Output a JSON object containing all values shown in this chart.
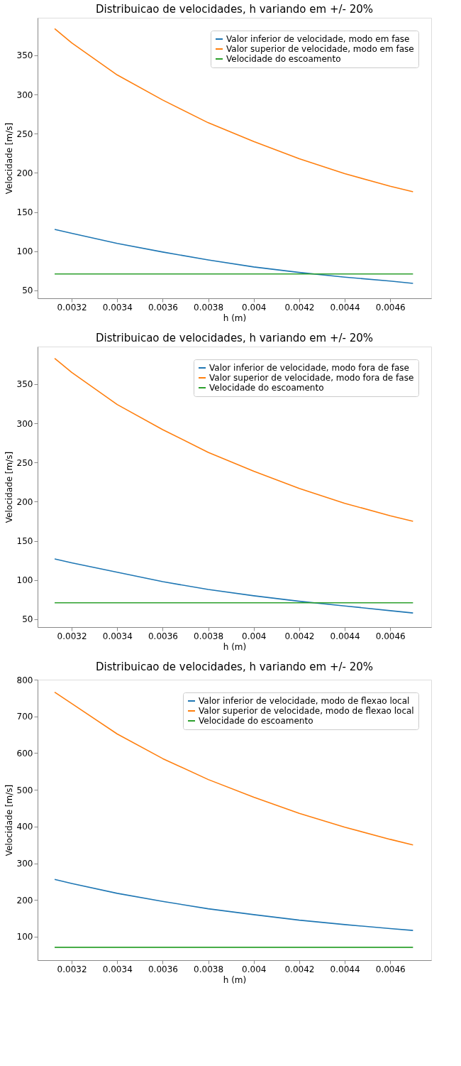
{
  "chart_data": [
    {
      "type": "line",
      "title": "Distribuicao de velocidades, h variando em +/- 20%",
      "xlabel": "h (m)",
      "ylabel": "Velocidade [m/s]",
      "x": [
        0.003125,
        0.0032,
        0.0034,
        0.0036,
        0.0038,
        0.004,
        0.0042,
        0.0044,
        0.0046,
        0.0047
      ],
      "xlim": [
        0.00305,
        0.00478
      ],
      "xticks": [
        0.0032,
        0.0034,
        0.0036,
        0.0038,
        0.004,
        0.0042,
        0.0044,
        0.0046
      ],
      "ylim": [
        40,
        398
      ],
      "yticks": [
        50,
        100,
        150,
        200,
        250,
        300,
        350
      ],
      "grid": false,
      "legend": "top right",
      "marker": "none",
      "line_style": "solid",
      "series": [
        {
          "name": "Valor inferior de velocidade, modo em fase",
          "color": "#1f77b4",
          "values": [
            128,
            123,
            110,
            99,
            89,
            80,
            73,
            67,
            62,
            59
          ]
        },
        {
          "name": "Valor superior de velocidade, modo em fase",
          "color": "#ff7f0e",
          "values": [
            384,
            366,
            325,
            293,
            264,
            240,
            218,
            199,
            183,
            176
          ]
        },
        {
          "name": "Velocidade do escoamento",
          "color": "#2ca02c",
          "values": [
            71,
            71,
            71,
            71,
            71,
            71,
            71,
            71,
            71,
            71
          ]
        }
      ]
    },
    {
      "type": "line",
      "title": "Distribuicao de velocidades, h variando em +/- 20%",
      "xlabel": "h (m)",
      "ylabel": "Velocidade [m/s]",
      "x": [
        0.003125,
        0.0032,
        0.0034,
        0.0036,
        0.0038,
        0.004,
        0.0042,
        0.0044,
        0.0046,
        0.0047
      ],
      "xlim": [
        0.00305,
        0.00478
      ],
      "xticks": [
        0.0032,
        0.0034,
        0.0036,
        0.0038,
        0.004,
        0.0042,
        0.0044,
        0.0046
      ],
      "ylim": [
        40,
        398
      ],
      "yticks": [
        50,
        100,
        150,
        200,
        250,
        300,
        350
      ],
      "grid": false,
      "legend": "top right",
      "marker": "none",
      "line_style": "solid",
      "series": [
        {
          "name": "Valor inferior de velocidade, modo fora de fase",
          "color": "#1f77b4",
          "values": [
            127,
            122,
            110,
            98,
            88,
            80,
            73,
            67,
            61,
            58
          ]
        },
        {
          "name": "Valor superior de velocidade, modo fora de fase",
          "color": "#ff7f0e",
          "values": [
            383,
            365,
            324,
            292,
            263,
            239,
            217,
            198,
            182,
            175
          ]
        },
        {
          "name": "Velocidade do escoamento",
          "color": "#2ca02c",
          "values": [
            71,
            71,
            71,
            71,
            71,
            71,
            71,
            71,
            71,
            71
          ]
        }
      ]
    },
    {
      "type": "line",
      "title": "Distribuicao de velocidades, h variando em +/- 20%",
      "xlabel": "h (m)",
      "ylabel": "Velocidade [m/s]",
      "x": [
        0.003125,
        0.0032,
        0.0034,
        0.0036,
        0.0038,
        0.004,
        0.0042,
        0.0044,
        0.0046,
        0.0047
      ],
      "xlim": [
        0.00305,
        0.00478
      ],
      "xticks": [
        0.0032,
        0.0034,
        0.0036,
        0.0038,
        0.004,
        0.0042,
        0.0044,
        0.0046
      ],
      "ylim": [
        36,
        800
      ],
      "yticks": [
        100,
        200,
        300,
        400,
        500,
        600,
        700,
        800
      ],
      "grid": false,
      "legend": "top right",
      "marker": "none",
      "line_style": "solid",
      "series": [
        {
          "name": "Valor inferior de velocidade, modo de flexao local",
          "color": "#1f77b4",
          "values": [
            256,
            245,
            218,
            196,
            176,
            160,
            145,
            133,
            122,
            117
          ]
        },
        {
          "name": "Valor superior de velocidade, modo de flexao local",
          "color": "#ff7f0e",
          "values": [
            766,
            735,
            652,
            585,
            528,
            480,
            436,
            398,
            365,
            350
          ]
        },
        {
          "name": "Velocidade do escoamento",
          "color": "#2ca02c",
          "values": [
            71,
            71,
            71,
            71,
            71,
            71,
            71,
            71,
            71,
            71
          ]
        }
      ]
    }
  ]
}
